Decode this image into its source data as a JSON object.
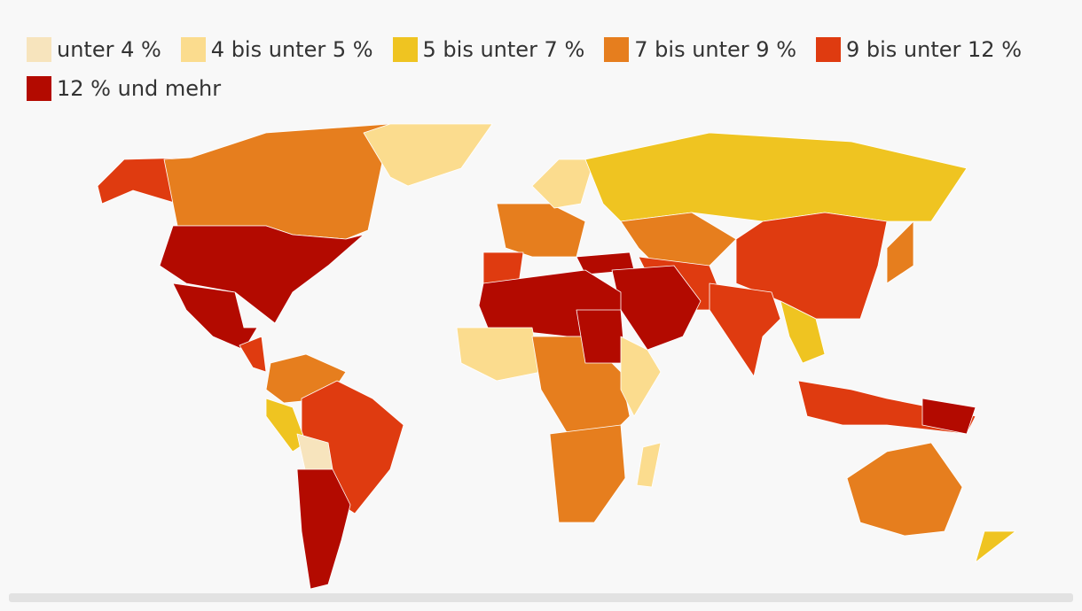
{
  "legend": {
    "items": [
      {
        "name": "unter 4 %",
        "color": "#f7e4bd"
      },
      {
        "name": "4 bis unter 5 %",
        "color": "#fbdc8e"
      },
      {
        "name": "5 bis unter 7 %",
        "color": "#efc421"
      },
      {
        "name": "7 bis unter 9 %",
        "color": "#e67e1e"
      },
      {
        "name": "9 bis unter 12 %",
        "color": "#df3b10"
      },
      {
        "name": "12 % und mehr",
        "color": "#b30a00"
      }
    ]
  }
}
